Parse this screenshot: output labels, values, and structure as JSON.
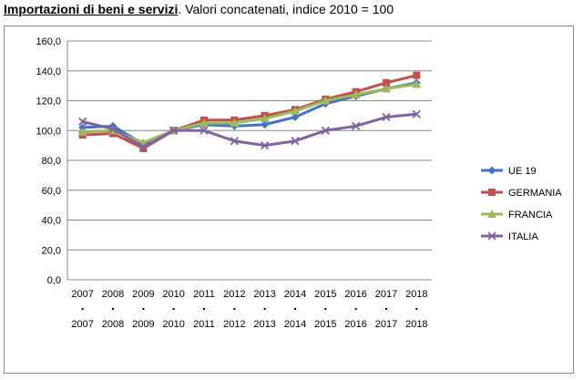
{
  "header": {
    "title_bold": "Importazioni di beni e servizi",
    "title_rest": ". Valori concatenati, indice 2010 = 100"
  },
  "chart_data": {
    "type": "line",
    "title": "Importazioni di beni e servizi. Valori concatenati, indice 2010 = 100",
    "xlabel": "",
    "ylabel": "",
    "categories": [
      "2007",
      "2008",
      "2009",
      "2010",
      "2011",
      "2012",
      "2013",
      "2014",
      "2015",
      "2016",
      "2017",
      "2018"
    ],
    "ylim": [
      0,
      160
    ],
    "yticks": [
      "0,0",
      "20,0",
      "40,0",
      "60,0",
      "80,0",
      "100,0",
      "120,0",
      "140,0",
      "160,0"
    ],
    "grid": true,
    "legend_position": "right",
    "series": [
      {
        "name": "UE 19",
        "color": "#4472C4",
        "marker": "diamond",
        "values": [
          102,
          103,
          91,
          100,
          104,
          103,
          104,
          109,
          118,
          123,
          128,
          132
        ]
      },
      {
        "name": "GERMANIA",
        "color": "#C0504D",
        "marker": "square",
        "values": [
          97,
          98,
          88,
          100,
          107,
          107,
          110,
          114,
          121,
          126,
          132,
          137
        ]
      },
      {
        "name": "FRANCIA",
        "color": "#9BBB59",
        "marker": "triangle",
        "values": [
          99,
          100,
          92,
          100,
          105,
          105,
          108,
          113,
          120,
          124,
          128,
          131
        ]
      },
      {
        "name": "ITALIA",
        "color": "#8064A2",
        "marker": "x",
        "values": [
          106,
          101,
          89,
          100,
          100,
          93,
          90,
          93,
          100,
          103,
          109,
          111
        ]
      }
    ]
  }
}
